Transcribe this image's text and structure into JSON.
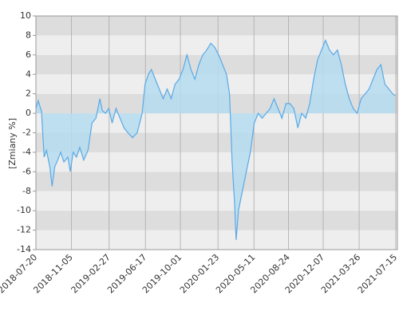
{
  "chart_data": {
    "type": "area",
    "y_label": "[Zmiany %]",
    "x": [
      "2018-07-20",
      "2018-07-27",
      "2018-08-06",
      "2018-08-14",
      "2018-08-21",
      "2018-08-31",
      "2018-09-07",
      "2018-09-15",
      "2018-09-24",
      "2018-10-03",
      "2018-10-13",
      "2018-10-25",
      "2018-11-01",
      "2018-11-10",
      "2018-11-20",
      "2018-11-30",
      "2018-12-12",
      "2018-12-25",
      "2019-01-06",
      "2019-01-18",
      "2019-01-30",
      "2019-02-06",
      "2019-02-16",
      "2019-02-26",
      "2019-03-08",
      "2019-03-20",
      "2019-04-01",
      "2019-04-13",
      "2019-04-25",
      "2019-05-09",
      "2019-05-23",
      "2019-06-07",
      "2019-06-16",
      "2019-06-26",
      "2019-07-05",
      "2019-07-17",
      "2019-07-29",
      "2019-08-10",
      "2019-08-22",
      "2019-09-03",
      "2019-09-15",
      "2019-09-27",
      "2019-10-09",
      "2019-10-21",
      "2019-11-02",
      "2019-11-14",
      "2019-11-26",
      "2019-12-08",
      "2019-12-20",
      "2020-01-01",
      "2020-01-13",
      "2020-01-25",
      "2020-02-06",
      "2020-02-18",
      "2020-02-27",
      "2020-03-06",
      "2020-03-13",
      "2020-03-18",
      "2020-03-25",
      "2020-04-06",
      "2020-04-18",
      "2020-04-30",
      "2020-05-12",
      "2020-05-24",
      "2020-06-05",
      "2020-06-17",
      "2020-06-29",
      "2020-07-11",
      "2020-07-23",
      "2020-08-04",
      "2020-08-16",
      "2020-08-28",
      "2020-09-09",
      "2020-09-21",
      "2020-10-03",
      "2020-10-15",
      "2020-10-27",
      "2020-11-08",
      "2020-11-20",
      "2020-12-02",
      "2020-12-14",
      "2020-12-26",
      "2021-01-07",
      "2021-01-19",
      "2021-01-31",
      "2021-02-12",
      "2021-02-24",
      "2021-03-08",
      "2021-03-20",
      "2021-04-01",
      "2021-04-13",
      "2021-04-25",
      "2021-05-07",
      "2021-05-19",
      "2021-05-31",
      "2021-06-12",
      "2021-06-24",
      "2021-07-06",
      "2021-07-13"
    ],
    "series": [
      {
        "color": "#5aa9e6",
        "fill": "#b5dcef",
        "values": [
          0.5,
          1.3,
          0.2,
          -4.5,
          -3.8,
          -5.5,
          -7.5,
          -5.5,
          -4.8,
          -4,
          -5,
          -4.5,
          -6,
          -4,
          -4.5,
          -3.5,
          -4.8,
          -3.8,
          -1,
          -0.5,
          1.5,
          0.3,
          0,
          0.5,
          -1,
          0.5,
          -0.5,
          -1.5,
          -2,
          -2.5,
          -2,
          0,
          3,
          4,
          4.5,
          3.5,
          2.5,
          1.5,
          2.5,
          1.5,
          3,
          3.5,
          4.5,
          6,
          4.5,
          3.5,
          5,
          6,
          6.5,
          7.2,
          6.8,
          6,
          5,
          4,
          2,
          -5,
          -9,
          -13,
          -10,
          -8,
          -6,
          -4,
          -1,
          0,
          -0.5,
          0,
          0.5,
          1.5,
          0.5,
          -0.5,
          1,
          1,
          0.5,
          -1.5,
          0,
          -0.5,
          1,
          3.5,
          5.5,
          6.5,
          7.5,
          6.5,
          6,
          6.5,
          5,
          3,
          1.5,
          0.5,
          0,
          1.5,
          2,
          2.5,
          3.5,
          4.5,
          5,
          3,
          2.5,
          2,
          1.8
        ]
      }
    ],
    "xlim": [
      "2018-07-20",
      "2021-07-20"
    ],
    "xticks": [
      "2018-07-20",
      "2018-11-05",
      "2019-02-27",
      "2019-06-17",
      "2019-10-01",
      "2020-01-23",
      "2020-05-11",
      "2020-08-24",
      "2020-12-07",
      "2021-03-26",
      "2021-07-15"
    ],
    "ylim": [
      -14,
      10
    ],
    "yticks": [
      -14,
      -12,
      -10,
      -8,
      -6,
      -4,
      -2,
      0,
      2,
      4,
      6,
      8,
      10
    ],
    "grid": true
  }
}
